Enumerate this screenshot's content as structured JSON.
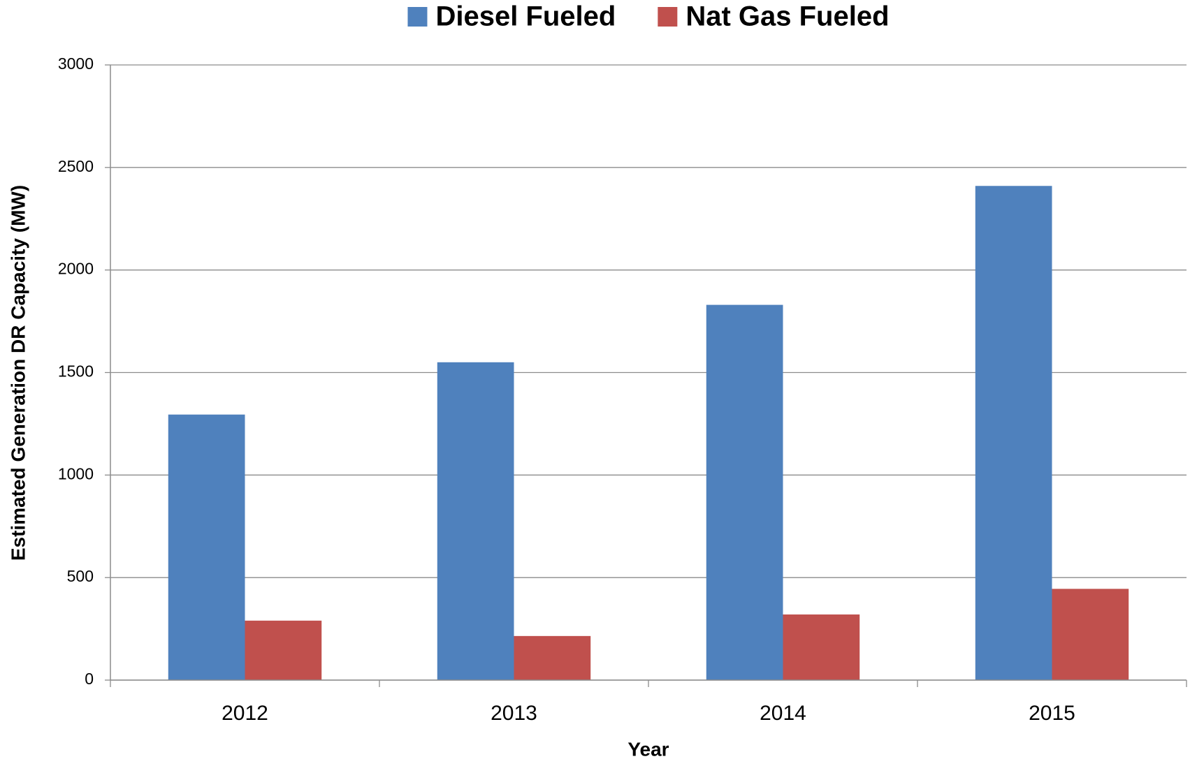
{
  "chart_data": {
    "type": "bar",
    "categories": [
      "2012",
      "2013",
      "2014",
      "2015"
    ],
    "series": [
      {
        "name": "Diesel Fueled",
        "color": "#4f81bd",
        "values": [
          1295,
          1550,
          1830,
          2410
        ]
      },
      {
        "name": "Nat Gas Fueled",
        "color": "#c0504d",
        "values": [
          290,
          215,
          320,
          445
        ]
      }
    ],
    "xlabel": "Year",
    "ylabel": "Estimated Generation DR Capacity (MW)",
    "ylim": [
      0,
      3000
    ],
    "yticks": [
      0,
      500,
      1000,
      1500,
      2000,
      2500,
      3000
    ],
    "grid": true,
    "legend": "top"
  }
}
